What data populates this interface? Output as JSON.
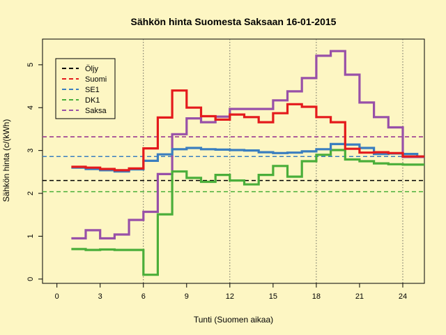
{
  "chart_data": {
    "type": "line",
    "title": "Sähkön hinta Suomesta Saksaan 16-01-2015",
    "xlabel": "Tunti (Suomen aikaa)",
    "ylabel": "Sähkön hinta (c/(kWh)",
    "xlim": [
      -1,
      25.5
    ],
    "ylim": [
      -0.1,
      5.6
    ],
    "xticks": [
      0,
      3,
      6,
      9,
      12,
      15,
      18,
      21,
      24
    ],
    "yticks": [
      0,
      1,
      2,
      3,
      4,
      5
    ],
    "vlines": [
      6,
      12,
      18,
      24
    ],
    "legend_position": "top-left",
    "hours": [
      1,
      2,
      3,
      4,
      5,
      6,
      7,
      8,
      9,
      10,
      11,
      12,
      13,
      14,
      15,
      16,
      17,
      18,
      19,
      20,
      21,
      22,
      23,
      24,
      25
    ],
    "series": [
      {
        "name": "Öljy",
        "color": "#000000",
        "kind": "hline",
        "value": 2.3
      },
      {
        "name": "Suomi",
        "color": "#e41a1c",
        "kind": "step",
        "avg": 3.32,
        "values": [
          2.62,
          2.6,
          2.57,
          2.54,
          2.58,
          3.05,
          3.77,
          4.4,
          4.0,
          3.8,
          3.72,
          3.84,
          3.78,
          3.66,
          3.87,
          4.08,
          4.02,
          3.78,
          3.66,
          3.04,
          2.95,
          2.96,
          2.94,
          2.86,
          2.86
        ]
      },
      {
        "name": "SE1",
        "color": "#3a7ebf",
        "kind": "step",
        "avg": 2.86,
        "values": [
          2.6,
          2.57,
          2.54,
          2.51,
          2.56,
          2.76,
          2.91,
          3.03,
          3.06,
          3.03,
          3.02,
          3.01,
          3.0,
          2.96,
          2.94,
          2.95,
          2.98,
          3.03,
          3.15,
          3.14,
          3.06,
          2.92,
          2.93,
          2.92,
          2.86
        ]
      },
      {
        "name": "DK1",
        "color": "#4aae3a",
        "kind": "step",
        "avg": 2.04,
        "values": [
          0.7,
          0.68,
          0.69,
          0.68,
          0.68,
          0.1,
          1.51,
          2.51,
          2.36,
          2.27,
          2.43,
          2.3,
          2.21,
          2.43,
          2.64,
          2.39,
          2.75,
          2.9,
          3.01,
          2.79,
          2.75,
          2.7,
          2.68,
          2.67,
          2.67
        ]
      },
      {
        "name": "Saksa",
        "color": "#9850a8",
        "kind": "step",
        "avg": 3.32,
        "values": [
          0.95,
          1.14,
          0.95,
          1.04,
          1.38,
          1.57,
          2.45,
          3.38,
          3.75,
          3.66,
          3.79,
          3.97,
          3.97,
          3.97,
          4.17,
          4.38,
          4.69,
          5.21,
          5.32,
          4.77,
          4.12,
          3.78,
          3.54,
          2.85,
          2.85
        ]
      }
    ]
  }
}
